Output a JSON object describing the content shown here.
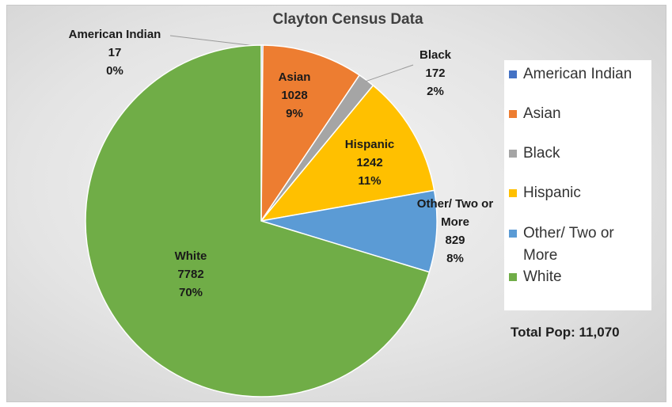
{
  "chart_data": {
    "type": "pie",
    "title": "Clayton Census Data",
    "slices": [
      {
        "name": "American Indian",
        "value": 17,
        "percent": "0%",
        "color": "#4472c4",
        "label_name_lines": [
          "American Indian"
        ]
      },
      {
        "name": "Asian",
        "value": 1028,
        "percent": "9%",
        "color": "#ed7d31",
        "label_name_lines": [
          "Asian"
        ]
      },
      {
        "name": "Black",
        "value": 172,
        "percent": "2%",
        "color": "#a5a5a5",
        "label_name_lines": [
          "Black"
        ]
      },
      {
        "name": "Hispanic",
        "value": 1242,
        "percent": "11%",
        "color": "#ffc000",
        "label_name_lines": [
          "Hispanic"
        ]
      },
      {
        "name": "Other/ Two or More",
        "value": 829,
        "percent": "8%",
        "color": "#5b9bd5",
        "label_name_lines": [
          "Other/ Two or",
          "More"
        ]
      },
      {
        "name": "White",
        "value": 7782,
        "percent": "70%",
        "color": "#70ad47",
        "label_name_lines": [
          "White"
        ]
      }
    ],
    "legend": {
      "placement": "right",
      "items": [
        {
          "lines": [
            "American Indian"
          ],
          "color": "#4472c4"
        },
        {
          "lines": [
            "Asian"
          ],
          "color": "#ed7d31"
        },
        {
          "lines": [
            "Black"
          ],
          "color": "#a5a5a5"
        },
        {
          "lines": [
            "Hispanic"
          ],
          "color": "#ffc000"
        },
        {
          "lines": [
            "Other/ Two or",
            "More"
          ],
          "color": "#5b9bd5"
        },
        {
          "lines": [
            "White"
          ],
          "color": "#70ad47"
        }
      ]
    },
    "annotation": "Total Pop: 11,070"
  }
}
